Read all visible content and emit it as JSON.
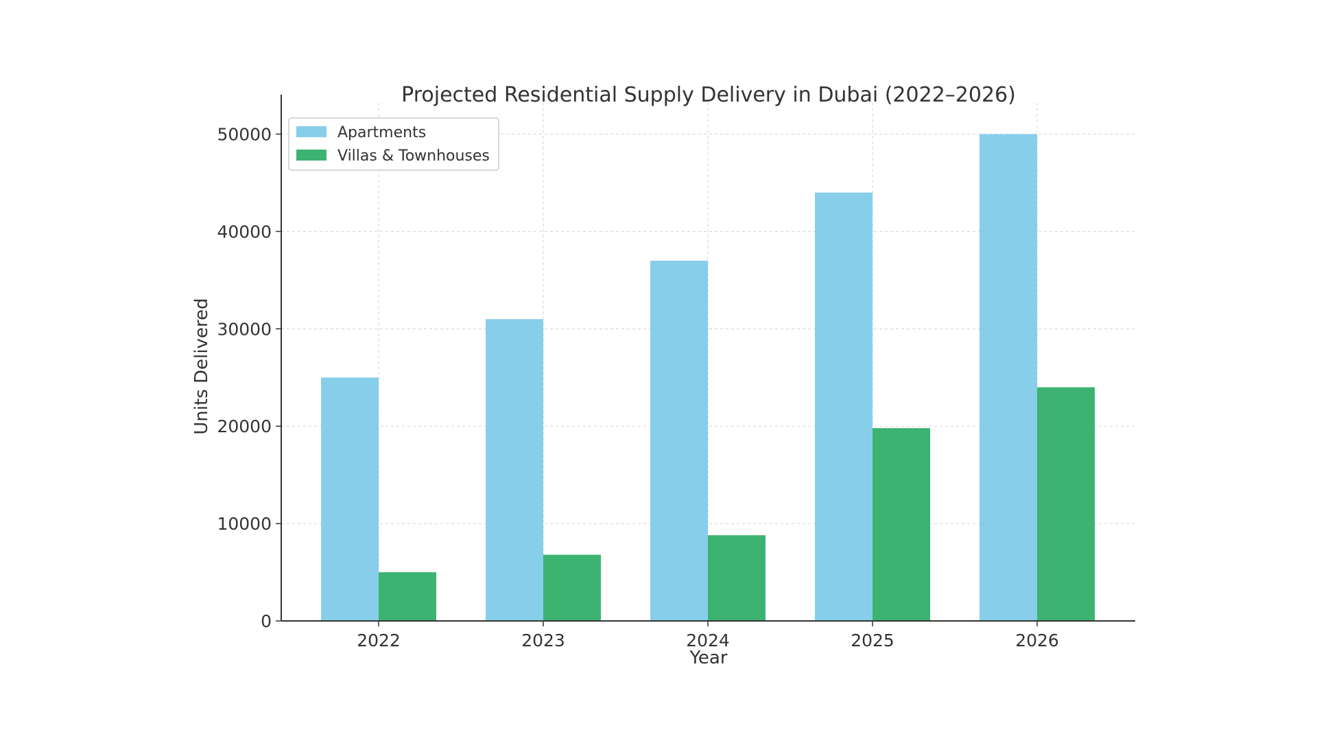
{
  "chart_data": {
    "type": "bar",
    "title": "Projected Residential Supply Delivery in Dubai (2022–2026)",
    "xlabel": "Year",
    "ylabel": "Units Delivered",
    "categories": [
      "2022",
      "2023",
      "2024",
      "2025",
      "2026"
    ],
    "series": [
      {
        "name": "Apartments",
        "values": [
          25000,
          31000,
          37000,
          44000,
          50000
        ],
        "color": "#87ceeb"
      },
      {
        "name": "Villas & Townhouses",
        "values": [
          5000,
          6800,
          8800,
          19800,
          24000
        ],
        "color": "#3cb371"
      }
    ],
    "ylim": [
      0,
      52500
    ],
    "yticks": [
      0,
      10000,
      20000,
      30000,
      40000,
      50000
    ],
    "grid": true,
    "legend_position": "top-left"
  }
}
